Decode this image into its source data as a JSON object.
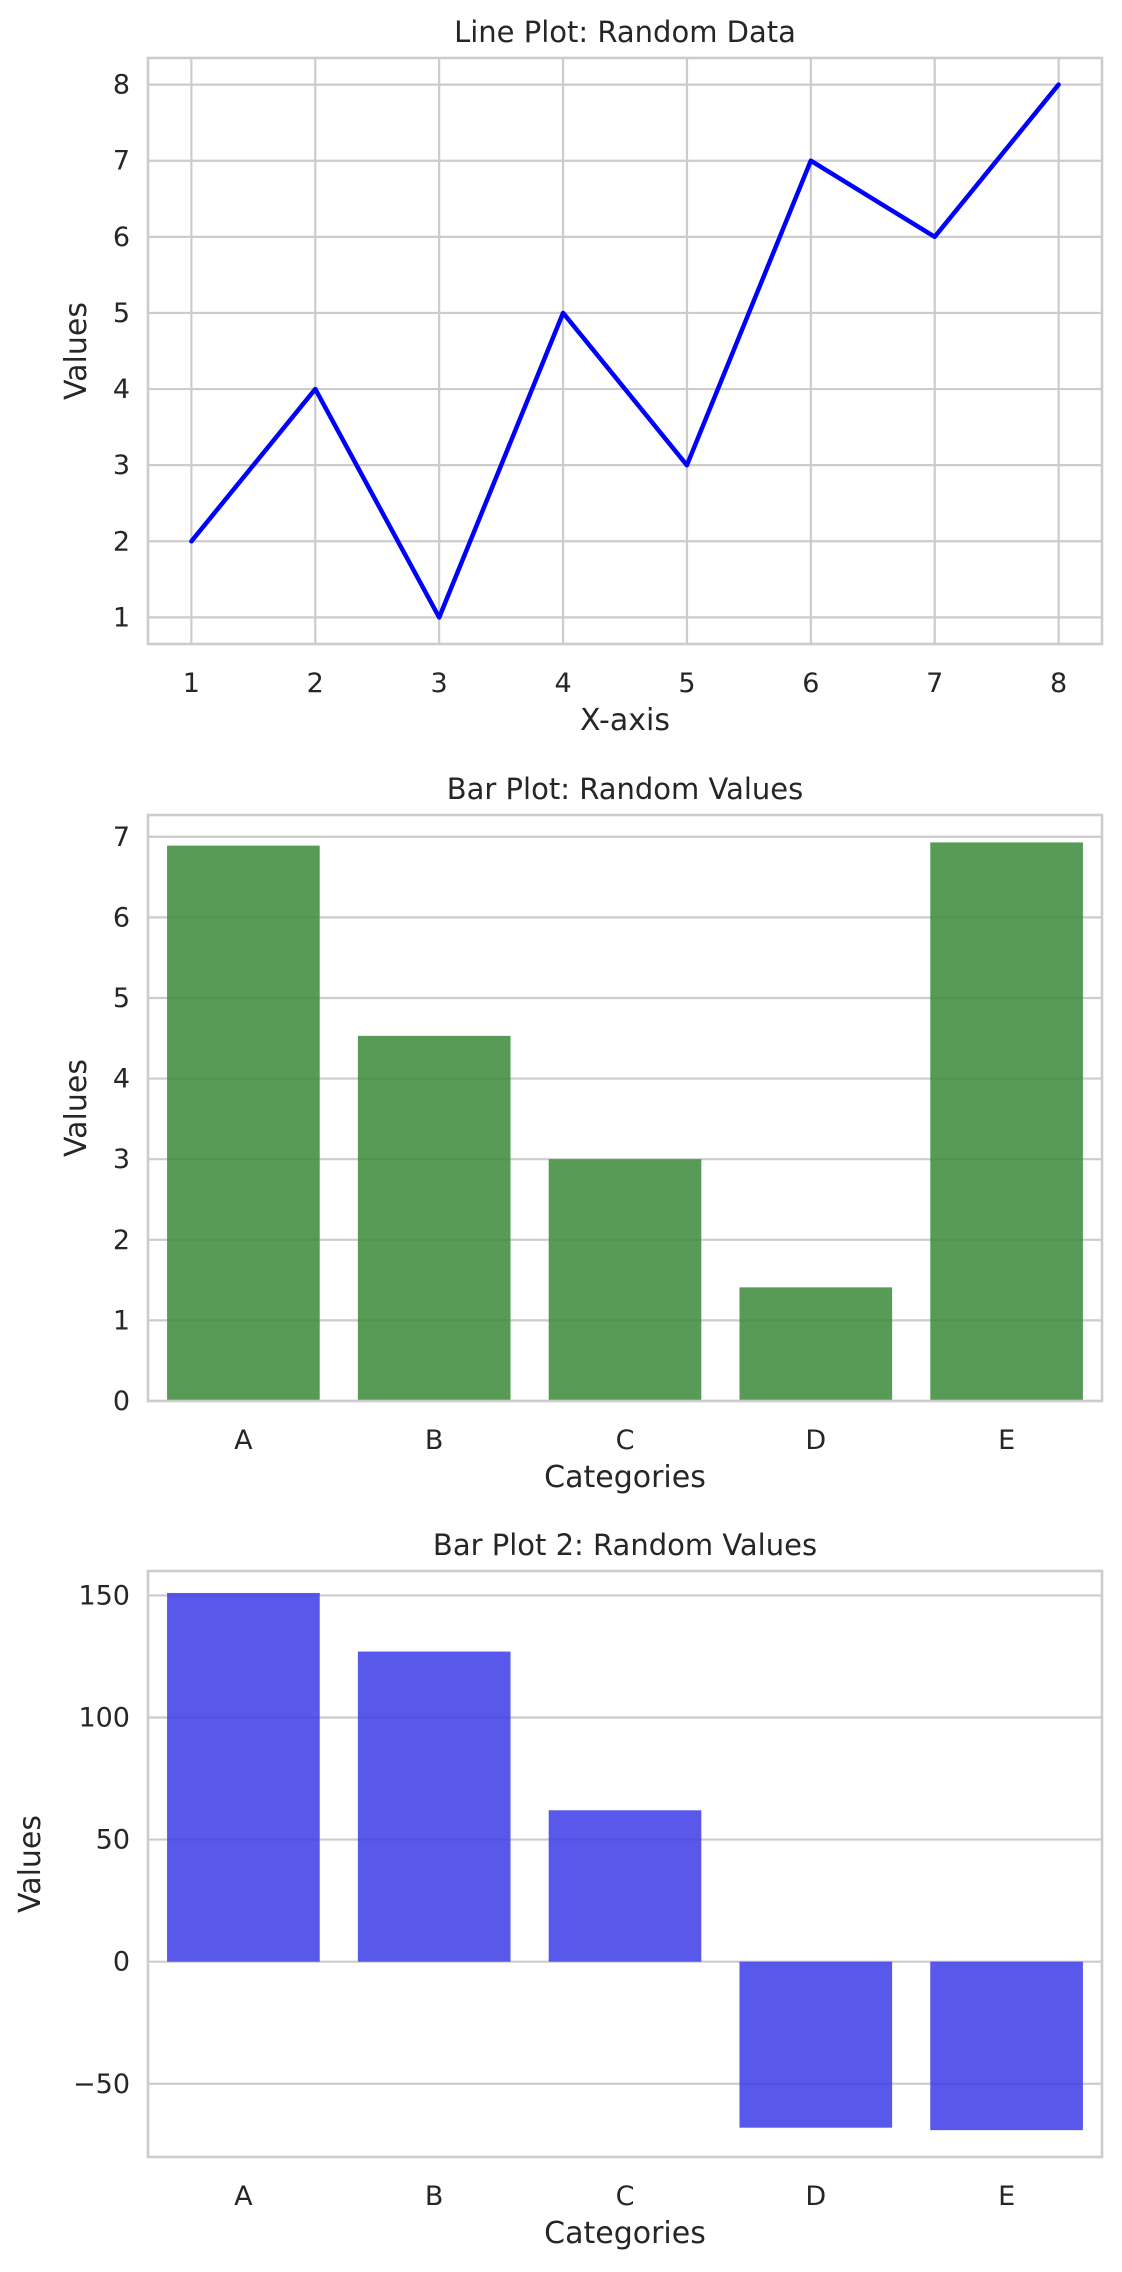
{
  "chart_data": [
    {
      "type": "line",
      "title": "Line Plot: Random Data",
      "xlabel": "X-axis",
      "ylabel": "Values",
      "x": [
        1,
        2,
        3,
        4,
        5,
        6,
        7,
        8
      ],
      "series": [
        {
          "values": [
            2,
            4,
            1,
            5,
            3,
            7,
            6,
            8
          ],
          "color": "#0000ff"
        }
      ],
      "xlim": [
        0.65,
        8.35
      ],
      "ylim": [
        0.65,
        8.35
      ],
      "xticks": [
        1,
        2,
        3,
        4,
        5,
        6,
        7,
        8
      ],
      "yticks": [
        1,
        2,
        3,
        4,
        5,
        6,
        7,
        8
      ],
      "grid": true
    },
    {
      "type": "bar",
      "title": "Bar Plot: Random Values",
      "xlabel": "Categories",
      "ylabel": "Values",
      "categories": [
        "A",
        "B",
        "C",
        "D",
        "E"
      ],
      "values": [
        6.89,
        4.53,
        3.0,
        1.41,
        6.93
      ],
      "color": "#3a8a3a",
      "ylim": [
        0,
        7.27
      ],
      "yticks": [
        0,
        1,
        2,
        3,
        4,
        5,
        6,
        7
      ],
      "grid": true
    },
    {
      "type": "bar",
      "title": "Bar Plot 2: Random Values",
      "xlabel": "Categories",
      "ylabel": "Values",
      "categories": [
        "A",
        "B",
        "C",
        "D",
        "E"
      ],
      "values": [
        151,
        127,
        62,
        -68,
        -69
      ],
      "color": "#3b3be6",
      "ylim": [
        -80,
        160
      ],
      "yticks": [
        -50,
        0,
        50,
        100,
        150
      ],
      "ytick_labels": [
        "−50",
        "0",
        "50",
        "100",
        "150"
      ],
      "grid": true
    }
  ]
}
